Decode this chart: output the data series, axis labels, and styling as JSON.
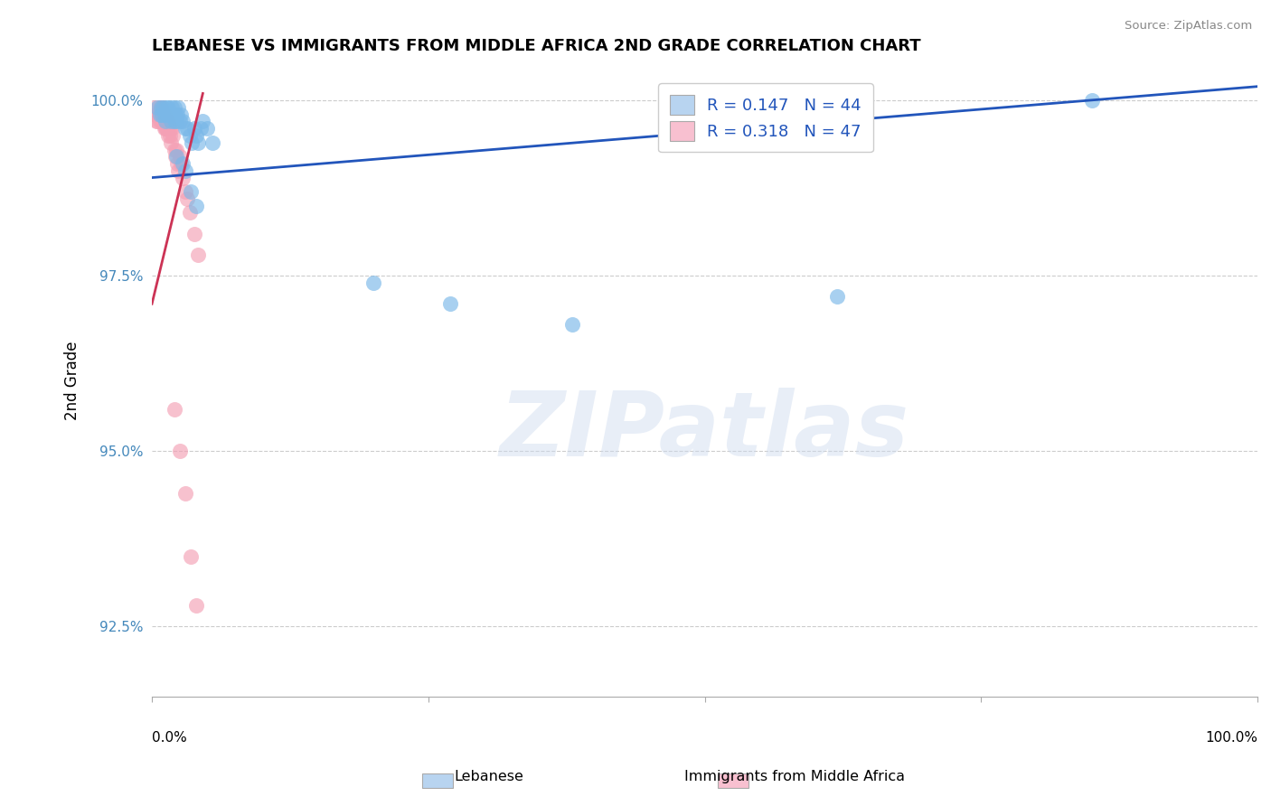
{
  "title": "LEBANESE VS IMMIGRANTS FROM MIDDLE AFRICA 2ND GRADE CORRELATION CHART",
  "source_text": "Source: ZipAtlas.com",
  "ylabel": "2nd Grade",
  "watermark": "ZIPatlas",
  "xlim": [
    0.0,
    1.0
  ],
  "ylim": [
    0.915,
    1.005
  ],
  "yticks": [
    0.925,
    0.95,
    0.975,
    1.0
  ],
  "ytick_labels": [
    "92.5%",
    "95.0%",
    "97.5%",
    "100.0%"
  ],
  "r_blue": 0.147,
  "n_blue": 44,
  "r_pink": 0.318,
  "n_pink": 47,
  "blue_color": "#7ab8e8",
  "pink_color": "#f4a0b5",
  "blue_line_color": "#2255bb",
  "pink_line_color": "#cc3355",
  "legend_box_blue": "#b8d4f0",
  "legend_box_pink": "#f8c0d0",
  "blue_scatter_x": [
    0.005,
    0.007,
    0.008,
    0.009,
    0.01,
    0.011,
    0.012,
    0.013,
    0.014,
    0.015,
    0.016,
    0.017,
    0.018,
    0.019,
    0.02,
    0.02,
    0.021,
    0.022,
    0.023,
    0.024,
    0.025,
    0.026,
    0.028,
    0.03,
    0.032,
    0.034,
    0.036,
    0.038,
    0.04,
    0.042,
    0.044,
    0.046,
    0.05,
    0.055,
    0.022,
    0.028,
    0.03,
    0.035,
    0.04,
    0.2,
    0.27,
    0.38,
    0.62,
    0.85
  ],
  "blue_scatter_y": [
    0.999,
    0.998,
    0.999,
    0.998,
    0.999,
    0.998,
    0.997,
    0.999,
    0.998,
    0.999,
    0.998,
    0.997,
    0.999,
    0.998,
    0.997,
    0.999,
    0.998,
    0.997,
    0.998,
    0.999,
    0.997,
    0.998,
    0.997,
    0.996,
    0.996,
    0.995,
    0.994,
    0.996,
    0.995,
    0.994,
    0.996,
    0.997,
    0.996,
    0.994,
    0.992,
    0.991,
    0.99,
    0.987,
    0.985,
    0.974,
    0.971,
    0.968,
    0.972,
    1.0
  ],
  "pink_scatter_x": [
    0.002,
    0.003,
    0.004,
    0.005,
    0.005,
    0.006,
    0.007,
    0.007,
    0.008,
    0.008,
    0.009,
    0.009,
    0.01,
    0.01,
    0.011,
    0.011,
    0.012,
    0.012,
    0.013,
    0.013,
    0.014,
    0.014,
    0.015,
    0.015,
    0.016,
    0.016,
    0.017,
    0.018,
    0.019,
    0.02,
    0.021,
    0.022,
    0.023,
    0.024,
    0.025,
    0.026,
    0.028,
    0.03,
    0.032,
    0.034,
    0.038,
    0.042,
    0.02,
    0.025,
    0.03,
    0.035,
    0.04
  ],
  "pink_scatter_y": [
    0.999,
    0.998,
    0.997,
    0.998,
    0.997,
    0.999,
    0.998,
    0.997,
    0.999,
    0.998,
    0.997,
    0.999,
    0.998,
    0.997,
    0.996,
    0.998,
    0.997,
    0.996,
    0.997,
    0.996,
    0.997,
    0.996,
    0.995,
    0.997,
    0.996,
    0.995,
    0.994,
    0.996,
    0.995,
    0.993,
    0.992,
    0.993,
    0.991,
    0.99,
    0.992,
    0.991,
    0.989,
    0.987,
    0.986,
    0.984,
    0.981,
    0.978,
    0.956,
    0.95,
    0.944,
    0.935,
    0.928
  ],
  "blue_line_x0": 0.0,
  "blue_line_x1": 1.0,
  "blue_line_y0": 0.989,
  "blue_line_y1": 1.002,
  "pink_line_x0": 0.0,
  "pink_line_x1": 0.046,
  "pink_line_y0": 0.971,
  "pink_line_y1": 1.001
}
